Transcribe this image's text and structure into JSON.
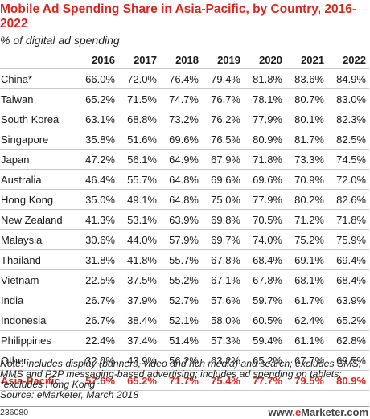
{
  "title": "Mobile Ad Spending Share in Asia-Pacific, by Country, 2016-2022",
  "subtitle": "% of digital ad spending",
  "note": "Note: includes display (banners, video and rich media) and search; excludes SMS, MMS and P2P messaging-based advertising; includes ad spending on tablets; *excludes Hong Kong",
  "source": "Source: eMarketer, March 2018",
  "chart_code": "236080",
  "brand": {
    "prefix": "www.",
    "highlight": "e",
    "name": "Marketer",
    "suffix": ".com"
  },
  "chart_data": {
    "type": "table",
    "title": "Mobile Ad Spending Share in Asia-Pacific, by Country, 2016-2022",
    "subtitle": "% of digital ad spending",
    "columns": [
      "2016",
      "2017",
      "2018",
      "2019",
      "2020",
      "2021",
      "2022"
    ],
    "rows": [
      {
        "country": "China*",
        "values": [
          "66.0%",
          "72.0%",
          "76.4%",
          "79.4%",
          "81.8%",
          "83.6%",
          "84.9%"
        ]
      },
      {
        "country": "Taiwan",
        "values": [
          "65.2%",
          "71.5%",
          "74.7%",
          "76.7%",
          "78.1%",
          "80.7%",
          "83.0%"
        ]
      },
      {
        "country": "South Korea",
        "values": [
          "63.1%",
          "68.8%",
          "73.2%",
          "76.2%",
          "77.9%",
          "80.1%",
          "82.3%"
        ]
      },
      {
        "country": "Singapore",
        "values": [
          "35.8%",
          "51.6%",
          "69.6%",
          "76.5%",
          "80.9%",
          "81.7%",
          "82.5%"
        ]
      },
      {
        "country": "Japan",
        "values": [
          "47.2%",
          "56.1%",
          "64.9%",
          "67.9%",
          "71.8%",
          "73.3%",
          "74.5%"
        ]
      },
      {
        "country": "Australia",
        "values": [
          "46.4%",
          "55.7%",
          "64.8%",
          "69.6%",
          "69.6%",
          "70.9%",
          "72.0%"
        ]
      },
      {
        "country": "Hong Kong",
        "values": [
          "35.0%",
          "49.1%",
          "64.8%",
          "75.0%",
          "77.9%",
          "80.2%",
          "82.6%"
        ]
      },
      {
        "country": "New Zealand",
        "values": [
          "41.3%",
          "53.1%",
          "63.9%",
          "69.8%",
          "70.5%",
          "71.2%",
          "71.8%"
        ]
      },
      {
        "country": "Malaysia",
        "values": [
          "30.6%",
          "44.0%",
          "57.9%",
          "69.7%",
          "74.0%",
          "75.2%",
          "75.9%"
        ]
      },
      {
        "country": "Thailand",
        "values": [
          "31.8%",
          "41.8%",
          "55.7%",
          "67.8%",
          "68.4%",
          "69.1%",
          "69.4%"
        ]
      },
      {
        "country": "Vietnam",
        "values": [
          "22.5%",
          "37.5%",
          "55.2%",
          "67.1%",
          "67.8%",
          "68.1%",
          "68.4%"
        ]
      },
      {
        "country": "India",
        "values": [
          "26.7%",
          "37.9%",
          "52.7%",
          "57.6%",
          "59.7%",
          "61.7%",
          "63.9%"
        ]
      },
      {
        "country": "Indonesia",
        "values": [
          "26.7%",
          "38.4%",
          "52.1%",
          "58.0%",
          "60.5%",
          "62.4%",
          "65.2%"
        ]
      },
      {
        "country": "Philippines",
        "values": [
          "22.4%",
          "37.4%",
          "51.4%",
          "57.3%",
          "59.4%",
          "61.1%",
          "62.8%"
        ]
      },
      {
        "country": "Other",
        "values": [
          "32.0%",
          "43.9%",
          "56.2%",
          "63.2%",
          "65.2%",
          "67.7%",
          "69.5%"
        ]
      }
    ],
    "total": {
      "country": "Asia-Pacific",
      "values": [
        "57.6%",
        "65.2%",
        "71.7%",
        "75.4%",
        "77.7%",
        "79.5%",
        "80.9%"
      ]
    }
  },
  "colors": {
    "accent": "#d9261c",
    "text": "#1a1a1a",
    "rule": "#c8c8c8"
  }
}
